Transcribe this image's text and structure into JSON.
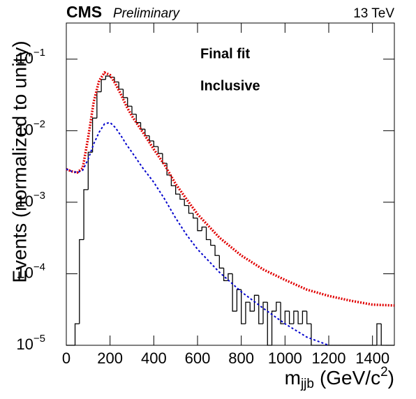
{
  "chart_data": {
    "type": "histogram",
    "experiment": "CMS",
    "status": "Preliminary",
    "energy": "13 TeV",
    "annotations": [
      "Final fit",
      "Inclusive"
    ],
    "ylabel": "Events (normalized to unity)",
    "xlabel": {
      "base": "m",
      "sub": "jjb",
      "unit": "(GeV/c",
      "sup": "2",
      "close": ")"
    },
    "log_y": true,
    "xlim": [
      0,
      1500
    ],
    "ylim": [
      1e-05,
      0.32
    ],
    "xticks": [
      0,
      200,
      400,
      600,
      800,
      1000,
      1200,
      1400
    ],
    "yticks": [
      {
        "value": 1e-05,
        "label": "10",
        "exponent": "−5"
      },
      {
        "value": 0.0001,
        "label": "10",
        "exponent": "−4"
      },
      {
        "value": 0.001,
        "label": "10",
        "exponent": "−3"
      },
      {
        "value": 0.01,
        "label": "10",
        "exponent": "−2"
      },
      {
        "value": 0.1,
        "label": "10",
        "exponent": "−1"
      }
    ],
    "histogram_color": "#000000",
    "bins": [
      0,
      20,
      40,
      60,
      80,
      100,
      120,
      140,
      160,
      180,
      200,
      220,
      240,
      260,
      280,
      300,
      320,
      340,
      360,
      380,
      400,
      420,
      440,
      460,
      480,
      500,
      520,
      540,
      560,
      580,
      600,
      620,
      640,
      660,
      680,
      700,
      720,
      740,
      760,
      780,
      800,
      820,
      840,
      860,
      880,
      900,
      920,
      940,
      960,
      980,
      1000,
      1020,
      1040,
      1060,
      1080,
      1100,
      1120,
      1140,
      1160,
      1180,
      1200,
      1220,
      1240,
      1260,
      1280,
      1300,
      1320,
      1340,
      1360,
      1380,
      1400,
      1420,
      1440,
      1460,
      1480,
      1500
    ],
    "counts": [
      0,
      0,
      2e-05,
      0.0003,
      0.0015,
      0.005,
      0.015,
      0.035,
      0.052,
      0.058,
      0.056,
      0.048,
      0.038,
      0.029,
      0.022,
      0.017,
      0.013,
      0.0105,
      0.0085,
      0.0072,
      0.006,
      0.0048,
      0.0035,
      0.0024,
      0.0017,
      0.0013,
      0.0011,
      0.0009,
      0.0007,
      0.0006,
      0.0004,
      0.00045,
      0.0003,
      0.00025,
      0.00018,
      0.00012,
      8e-05,
      0.0001,
      3e-05,
      6e-05,
      2e-05,
      4e-05,
      3e-05,
      5e-05,
      2e-05,
      4e-05,
      1e-05,
      3e-05,
      4e-05,
      2e-05,
      3e-05,
      2e-05,
      3e-05,
      2e-05,
      3e-05,
      2e-05,
      0,
      0,
      0,
      0,
      0,
      0,
      0,
      0,
      0,
      0,
      0,
      0,
      0,
      0,
      0,
      2e-05,
      0,
      0,
      0
    ],
    "series": [
      {
        "color": "#e00000",
        "dash": "2,2",
        "width": 3.5,
        "x": [
          0,
          25,
          50,
          75,
          100,
          125,
          150,
          175,
          200,
          225,
          250,
          275,
          300,
          350,
          400,
          450,
          500,
          550,
          600,
          700,
          800,
          900,
          1000,
          1100,
          1200,
          1300,
          1400,
          1500
        ],
        "values": [
          0.0029,
          0.0027,
          0.0026,
          0.003,
          0.008,
          0.025,
          0.05,
          0.065,
          0.06,
          0.045,
          0.032,
          0.022,
          0.016,
          0.0095,
          0.0055,
          0.0033,
          0.0018,
          0.0011,
          0.00068,
          0.00032,
          0.00018,
          0.000115,
          8.2e-05,
          6e-05,
          4.9e-05,
          4.2e-05,
          3.7e-05,
          3.6e-05
        ]
      },
      {
        "color": "#0000cc",
        "dash": "3,3",
        "width": 2,
        "x": [
          0,
          25,
          50,
          75,
          100,
          125,
          150,
          175,
          200,
          225,
          250,
          275,
          300,
          350,
          400,
          450,
          500,
          550,
          600,
          700,
          800,
          900,
          1000,
          1100,
          1200
        ],
        "values": [
          0.0029,
          0.0027,
          0.0026,
          0.0028,
          0.004,
          0.0065,
          0.0095,
          0.0125,
          0.013,
          0.011,
          0.0085,
          0.0064,
          0.005,
          0.003,
          0.0019,
          0.0011,
          0.0006,
          0.00035,
          0.00022,
          0.000105,
          5.6e-05,
          3.3e-05,
          2e-05,
          1.3e-05,
          1e-05
        ]
      }
    ]
  }
}
